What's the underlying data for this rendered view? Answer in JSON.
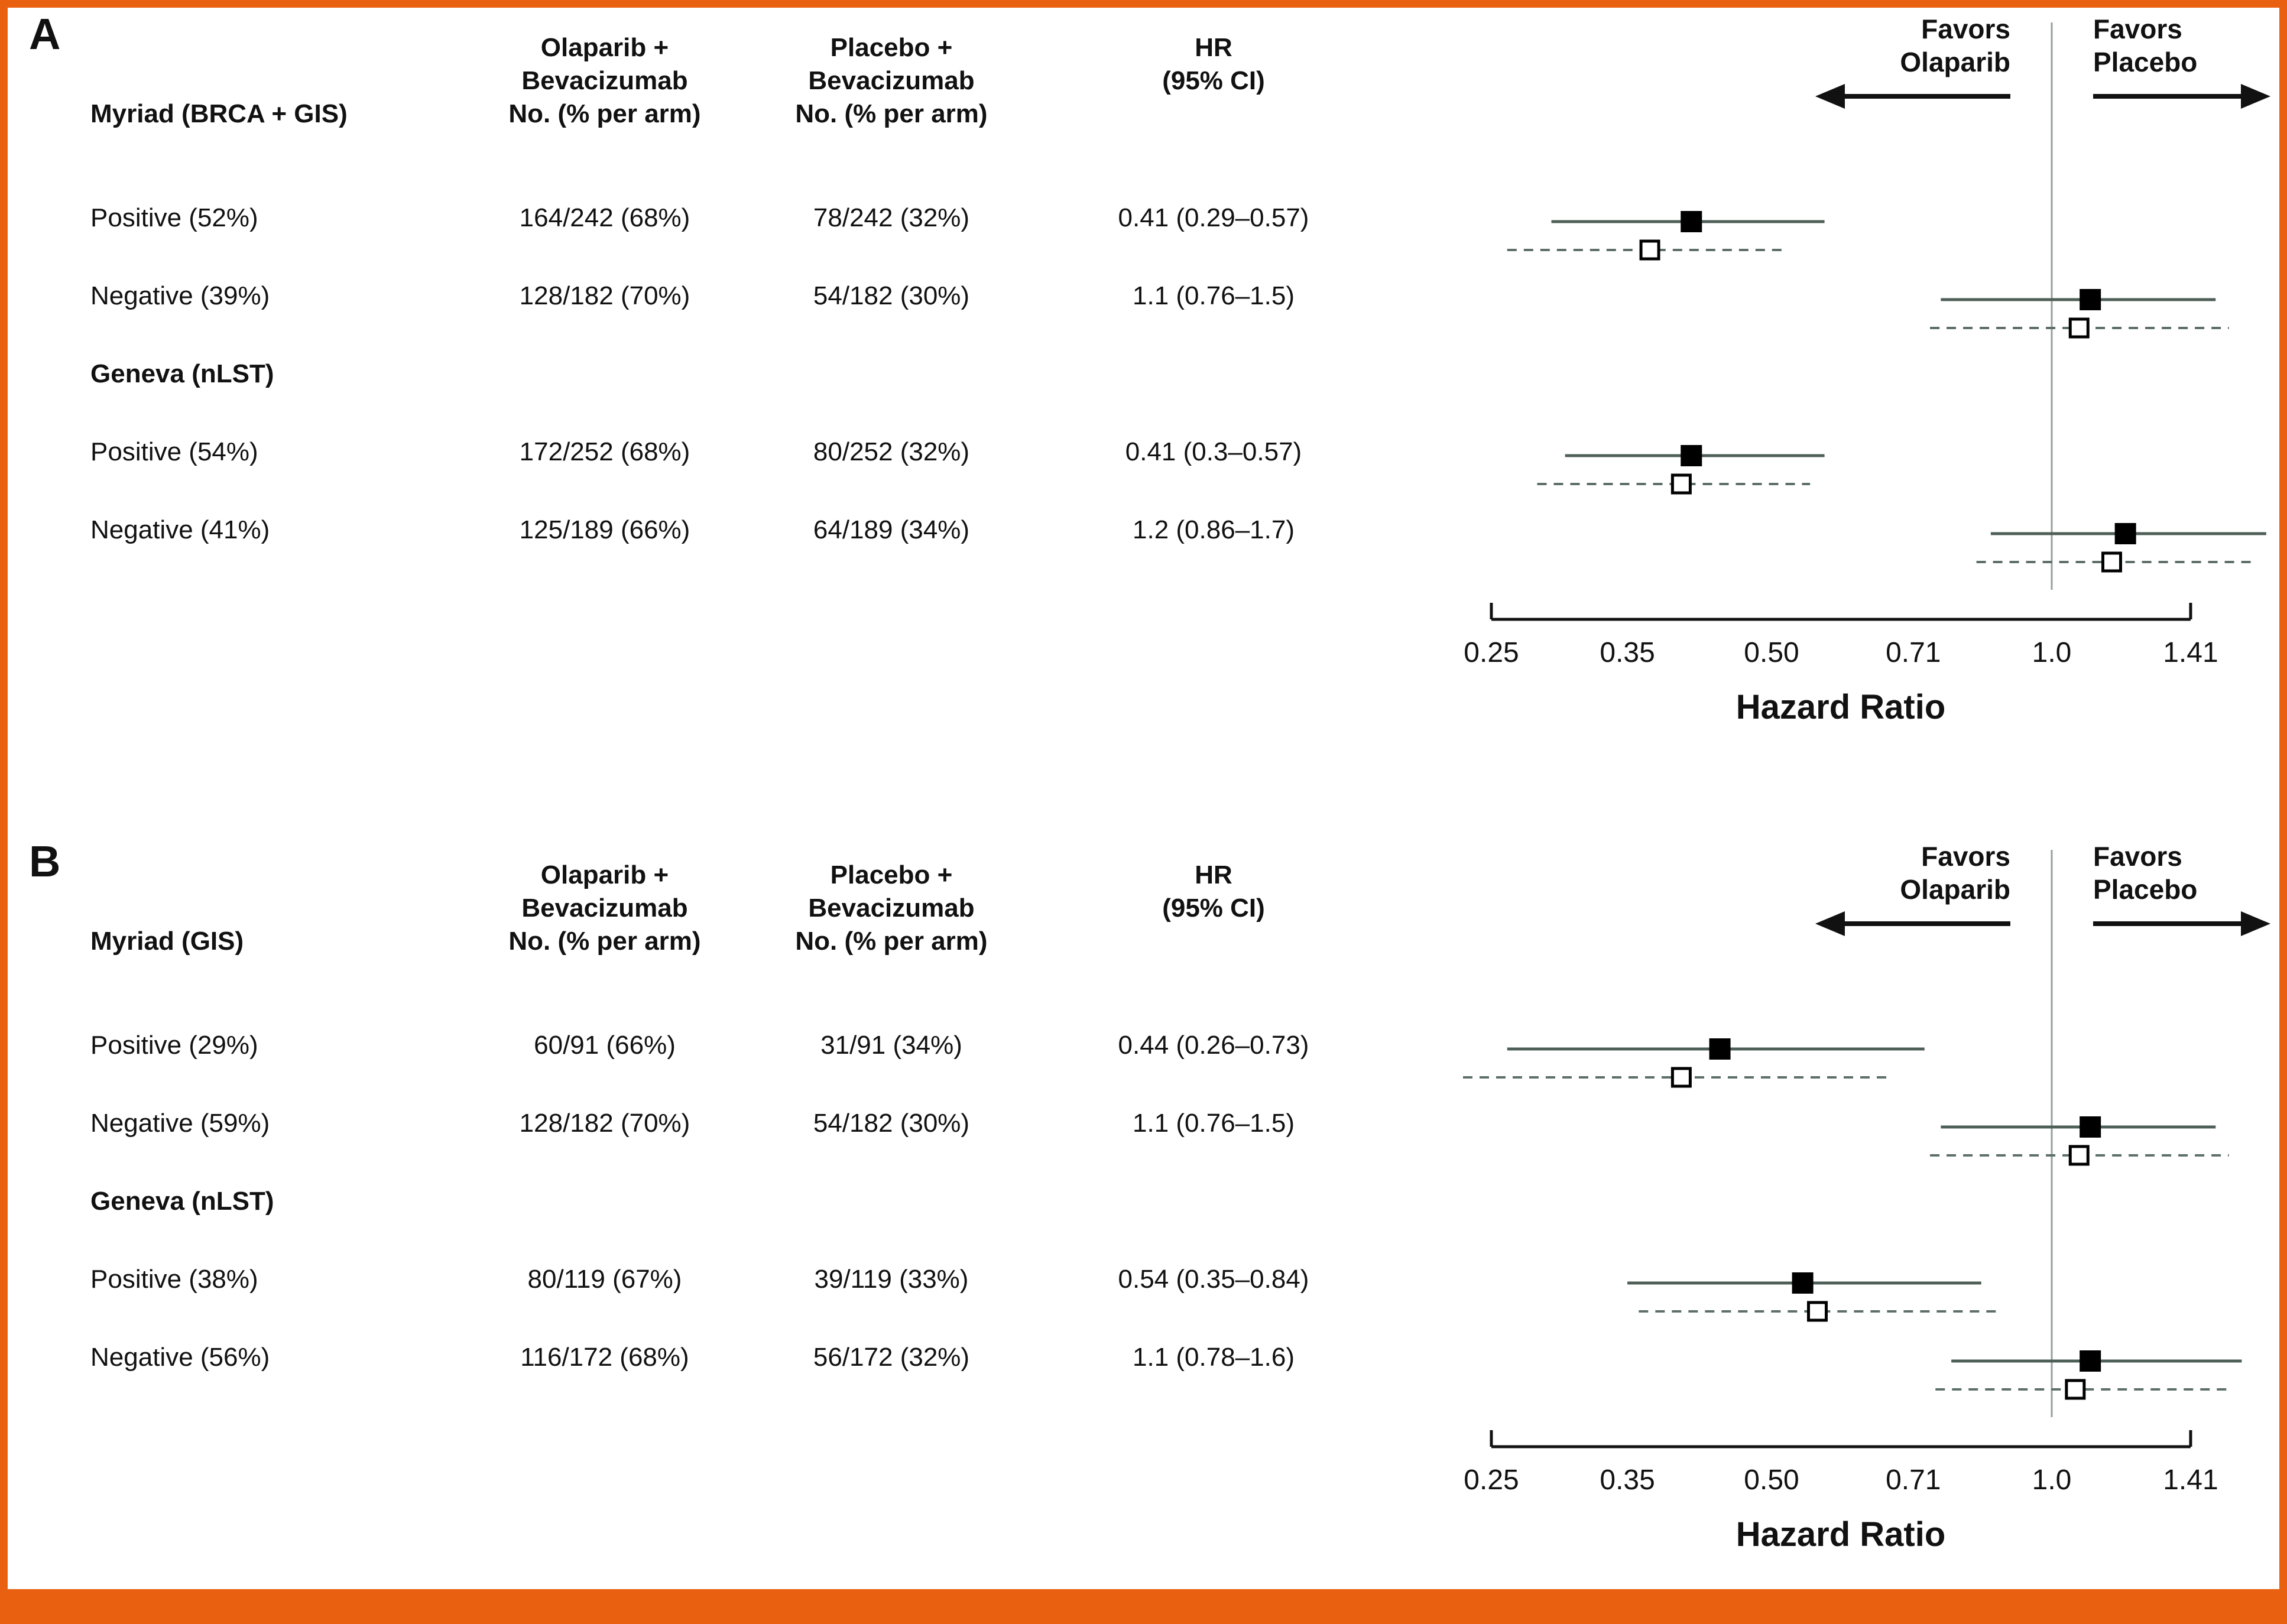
{
  "columns": {
    "olaparib": [
      "Olaparib +",
      "Bevacizumab",
      "No. (% per arm)"
    ],
    "placebo": [
      "Placebo +",
      "Bevacizumab",
      "No. (% per arm)"
    ],
    "hr": [
      "HR",
      "(95% CI)"
    ]
  },
  "colors": {
    "frame": "#e96110",
    "ci_solid": "#4e5f57",
    "ci_dashed": "#5d6f67",
    "marker_solid": "#000000",
    "marker_open_fill": "#ffffff",
    "reference_line": "#97a19b"
  },
  "chart_data": {
    "type": "forest",
    "scale": "log",
    "xlabel": "Hazard Ratio",
    "x_ticks": [
      0.25,
      0.35,
      0.5,
      0.71,
      1.0,
      1.41
    ],
    "x_tick_labels": [
      "0.25",
      "0.35",
      "0.50",
      "0.71",
      "1.0",
      "1.41"
    ],
    "ref_line": 1.0,
    "favors_left": [
      "Favors",
      "Olaparib"
    ],
    "favors_right": [
      "Favors",
      "Placebo"
    ],
    "panels": [
      {
        "letter": "A",
        "group1": "Myriad (BRCA + GIS)",
        "rows": [
          {
            "kind": "data",
            "label": "Positive (52%)",
            "olaparib": "164/242 (68%)",
            "placebo": "78/242 (32%)",
            "hr_text": "0.41 (0.29–0.57)",
            "solid": {
              "hr": 0.41,
              "lo": 0.29,
              "hi": 0.57
            },
            "dashed": {
              "hr": 0.37,
              "lo": 0.26,
              "hi": 0.52
            }
          },
          {
            "kind": "data",
            "label": "Negative (39%)",
            "olaparib": "128/182 (70%)",
            "placebo": "54/182 (30%)",
            "hr_text": "1.1 (0.76–1.5)",
            "solid": {
              "hr": 1.1,
              "lo": 0.76,
              "hi": 1.5
            },
            "dashed": {
              "hr": 1.07,
              "lo": 0.74,
              "hi": 1.55
            }
          },
          {
            "kind": "group",
            "label": "Geneva (nLST)"
          },
          {
            "kind": "data",
            "label": "Positive (54%)",
            "olaparib": "172/252 (68%)",
            "placebo": "80/252 (32%)",
            "hr_text": "0.41 (0.3–0.57)",
            "solid": {
              "hr": 0.41,
              "lo": 0.3,
              "hi": 0.57
            },
            "dashed": {
              "hr": 0.4,
              "lo": 0.28,
              "hi": 0.55
            }
          },
          {
            "kind": "data",
            "label": "Negative (41%)",
            "olaparib": "125/189 (66%)",
            "placebo": "64/189 (34%)",
            "hr_text": "1.2 (0.86–1.7)",
            "solid": {
              "hr": 1.2,
              "lo": 0.86,
              "hi": 1.7
            },
            "dashed": {
              "hr": 1.16,
              "lo": 0.83,
              "hi": 1.65
            }
          }
        ]
      },
      {
        "letter": "B",
        "group1": "Myriad (GIS)",
        "rows": [
          {
            "kind": "data",
            "label": "Positive (29%)",
            "olaparib": "60/91 (66%)",
            "placebo": "31/91 (34%)",
            "hr_text": "0.44 (0.26–0.73)",
            "solid": {
              "hr": 0.44,
              "lo": 0.26,
              "hi": 0.73
            },
            "dashed": {
              "hr": 0.4,
              "lo": 0.23,
              "hi": 0.67
            }
          },
          {
            "kind": "data",
            "label": "Negative (59%)",
            "olaparib": "128/182 (70%)",
            "placebo": "54/182 (30%)",
            "hr_text": "1.1 (0.76–1.5)",
            "solid": {
              "hr": 1.1,
              "lo": 0.76,
              "hi": 1.5
            },
            "dashed": {
              "hr": 1.07,
              "lo": 0.74,
              "hi": 1.55
            }
          },
          {
            "kind": "group",
            "label": "Geneva (nLST)"
          },
          {
            "kind": "data",
            "label": "Positive (38%)",
            "olaparib": "80/119 (67%)",
            "placebo": "39/119 (33%)",
            "hr_text": "0.54 (0.35–0.84)",
            "solid": {
              "hr": 0.54,
              "lo": 0.35,
              "hi": 0.84
            },
            "dashed": {
              "hr": 0.56,
              "lo": 0.36,
              "hi": 0.88
            }
          },
          {
            "kind": "data",
            "label": "Negative (56%)",
            "olaparib": "116/172 (68%)",
            "placebo": "56/172 (32%)",
            "hr_text": "1.1 (0.78–1.6)",
            "solid": {
              "hr": 1.1,
              "lo": 0.78,
              "hi": 1.6
            },
            "dashed": {
              "hr": 1.06,
              "lo": 0.75,
              "hi": 1.55
            }
          }
        ]
      }
    ]
  }
}
